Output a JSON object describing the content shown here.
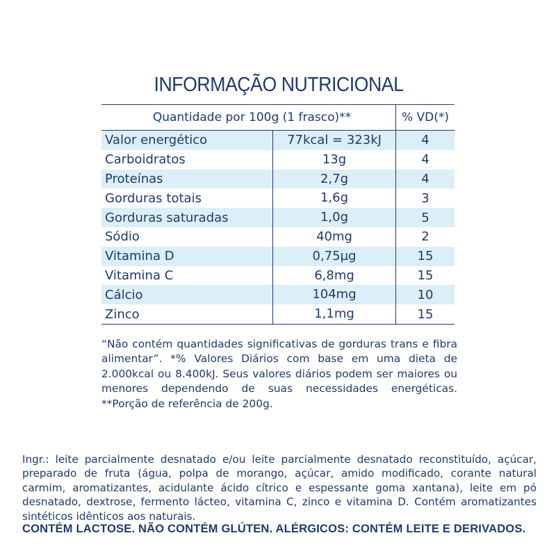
{
  "title": "INFORMAÇÃO NUTRICIONAL",
  "table": {
    "header_quantity": "Quantidade por 100g (1 frasco)**",
    "header_vd": "% VD(*)",
    "rows": [
      {
        "name": "Valor energético",
        "qty": "77kcal = 323kJ",
        "vd": "4"
      },
      {
        "name": "Carboidratos",
        "qty": "13g",
        "vd": "4"
      },
      {
        "name": "Proteínas",
        "qty": "2,7g",
        "vd": "4"
      },
      {
        "name": "Gorduras totais",
        "qty": "1,6g",
        "vd": "3"
      },
      {
        "name": "Gorduras saturadas",
        "qty": "1,0g",
        "vd": "5"
      },
      {
        "name": "Sódio",
        "qty": "40mg",
        "vd": "2"
      },
      {
        "name": "Vitamina D",
        "qty": "0,75µg",
        "vd": "15"
      },
      {
        "name": "Vitamina C",
        "qty": "6,8mg",
        "vd": "15"
      },
      {
        "name": "Cálcio",
        "qty": "104mg",
        "vd": "10"
      },
      {
        "name": "Zinco",
        "qty": "1,1mg",
        "vd": "15"
      }
    ]
  },
  "footnote": "“Não contém quantidades significativas de gorduras trans e fibra alimentar”. *% Valores Diários com base em uma dieta de 2.000kcal ou 8.400kJ. Seus valores diários podem ser maiores ou menores dependendo de suas necessidades energéticas. **Porção de referência de 200g.",
  "ingredients": "Ingr.: leite parcialmente desnatado e/ou leite parcialmente desnatado reconstituído, açúcar, preparado de fruta (água, polpa de morango, açúcar, amido modificado, corante natural carmim, aromatizantes, acidulante ácido cítrico e espessante goma xantana), leite em pó desnatado, dextrose, fermento lácteo, vitamina C, zinco e vitamina D. Contém aromatizantes sintéticos idênticos aos naturais.",
  "allergens": "CONTÉM LACTOSE. NÃO CONTÉM GLÚTEN. ALÉRGICOS: CONTÉM LEITE E DERIVADOS."
}
